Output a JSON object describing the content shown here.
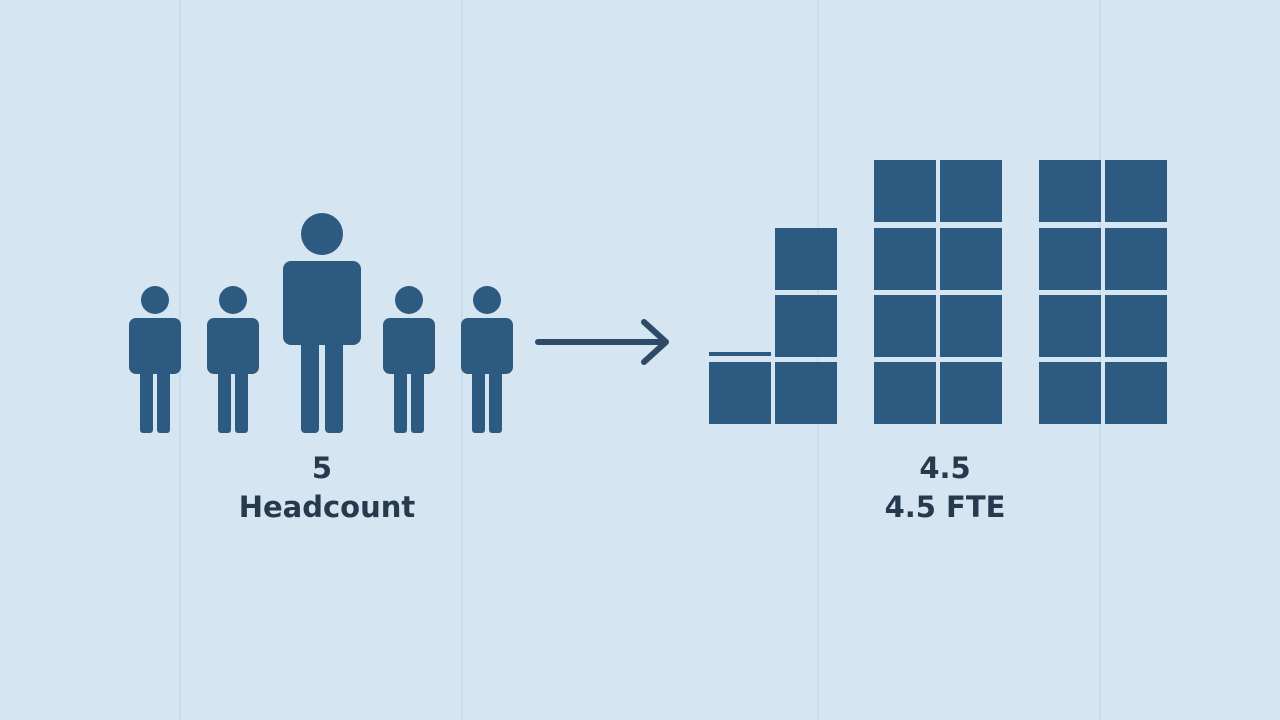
{
  "left": {
    "value": 5,
    "label": "Headcount"
  },
  "right": {
    "value": 4.5,
    "label": "4.5 FTE"
  }
}
